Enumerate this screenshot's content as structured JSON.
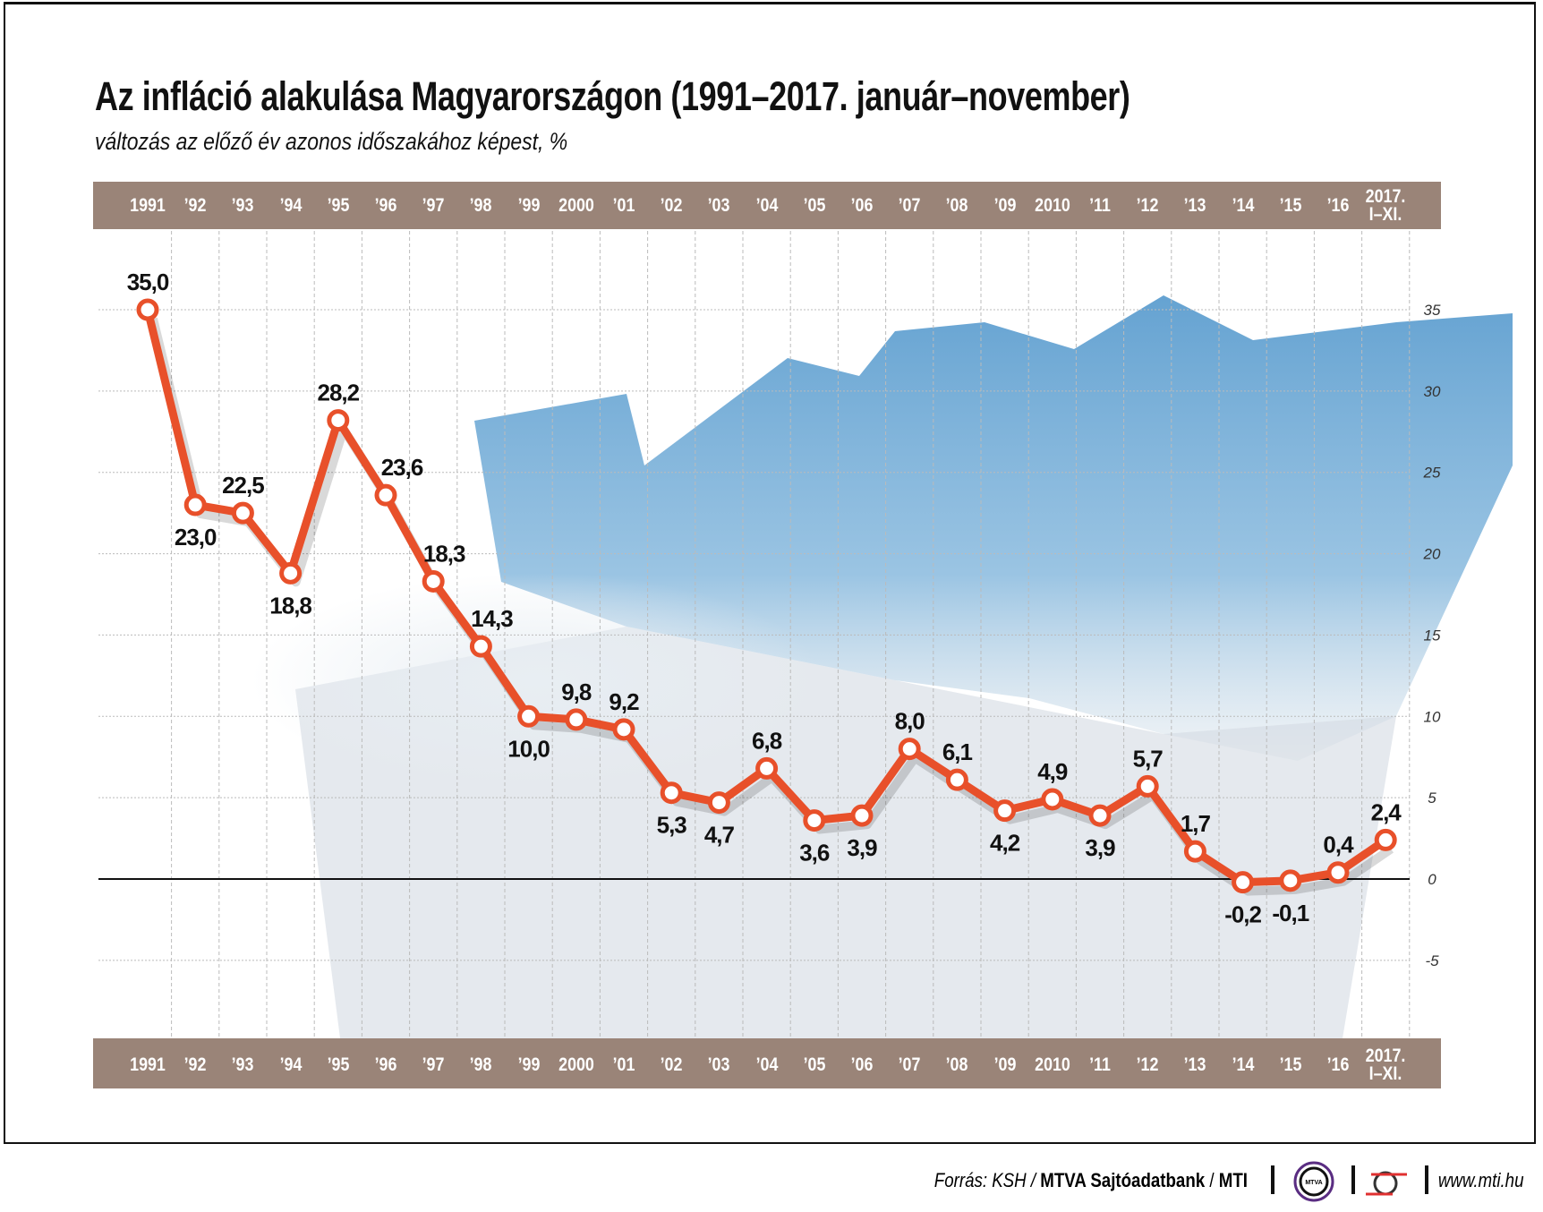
{
  "title": "Az infláció alakulása Magyarországon (1991–2017. január–november)",
  "subtitle": "változás az előző év azonos időszakához képest, %",
  "chart_data": {
    "type": "line",
    "title": "Az infláció alakulása Magyarországon (1991–2017. január–november)",
    "subtitle": "változás az előző év azonos időszakához képest, %",
    "categories": [
      "1991",
      "’92",
      "’93",
      "’94",
      "’95",
      "’96",
      "’97",
      "’98",
      "’99",
      "2000",
      "’01",
      "’02",
      "’03",
      "’04",
      "’05",
      "’06",
      "’07",
      "’08",
      "’09",
      "2010",
      "’11",
      "’12",
      "’13",
      "’14",
      "’15",
      "’16",
      "2017. I–XI."
    ],
    "values": [
      35.0,
      23.0,
      22.5,
      18.8,
      28.2,
      23.6,
      18.3,
      14.3,
      10.0,
      9.8,
      9.2,
      5.3,
      4.7,
      6.8,
      3.6,
      3.9,
      8.0,
      6.1,
      4.2,
      4.9,
      3.9,
      5.7,
      1.7,
      -0.2,
      -0.1,
      0.4,
      2.4
    ],
    "value_labels": [
      "35,0",
      "23,0",
      "22,5",
      "18,8",
      "28,2",
      "23,6",
      "18,3",
      "14,3",
      "10,0",
      "9,8",
      "9,2",
      "5,3",
      "4,7",
      "6,8",
      "3,6",
      "3,9",
      "8,0",
      "6,1",
      "4,2",
      "4,9",
      "3,9",
      "5,7",
      "1,7",
      "-0,2",
      "-0,1",
      "0,4",
      "2,4"
    ],
    "yticks": [
      35,
      30,
      25,
      20,
      15,
      10,
      5,
      0,
      -5
    ],
    "ylim": [
      -5,
      35
    ],
    "grid": true,
    "line_color": "#e8502a",
    "band_color": "#9a8478"
  },
  "footer": {
    "source_prefix": "Forrás: KSH / ",
    "source_bold": "MTVA Sajtóadatbank",
    "source_sep": " / ",
    "source_mti": "MTI",
    "mtva_logo": "MTVA",
    "website": "www.mti.hu"
  }
}
